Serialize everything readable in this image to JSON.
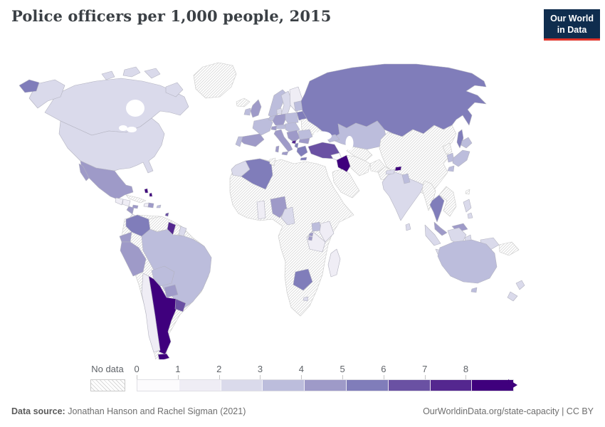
{
  "header": {
    "title": "Police officers per 1,000 people, 2015"
  },
  "logo": {
    "line1": "Our World",
    "line2": "in Data",
    "bg_color": "#0f2d4e",
    "accent_color": "#e03329",
    "text_color": "#ffffff"
  },
  "legend": {
    "no_data_label": "No data",
    "ticks": [
      "0",
      "1",
      "2",
      "3",
      "4",
      "5",
      "6",
      "7",
      "8"
    ],
    "bins": [
      {
        "range": "0-1",
        "color": "#fcfbfd"
      },
      {
        "range": "1-2",
        "color": "#efedf5"
      },
      {
        "range": "2-3",
        "color": "#dadaeb"
      },
      {
        "range": "3-4",
        "color": "#bcbddc"
      },
      {
        "range": "4-5",
        "color": "#9e9ac8"
      },
      {
        "range": "5-6",
        "color": "#807dba"
      },
      {
        "range": "6-7",
        "color": "#6a51a3"
      },
      {
        "range": "7-8",
        "color": "#54278f"
      },
      {
        "range": "8+",
        "color": "#3f007d"
      }
    ]
  },
  "footer": {
    "source_label": "Data source:",
    "source_text": " Jonathan Hanson and Rachel Sigman (2021)",
    "attribution": "OurWorldinData.org/state-capacity | CC BY"
  },
  "chart_data": {
    "type": "choropleth_map",
    "title": "Police officers per 1,000 people, 2015",
    "unit": "police officers per 1,000 people",
    "year": 2015,
    "legend": {
      "bin_edges": [
        0,
        1,
        2,
        3,
        4,
        5,
        6,
        7,
        8
      ],
      "open_ended_top": true,
      "no_data_label": "No data",
      "legend_position": "bottom"
    },
    "bin_colors": {
      "0-1": "#fcfbfd",
      "1-2": "#efedf5",
      "2-3": "#dadaeb",
      "3-4": "#bcbddc",
      "4-5": "#9e9ac8",
      "5-6": "#807dba",
      "6-7": "#6a51a3",
      "7-8": "#54278f",
      "8+": "#3f007d"
    },
    "country_bins": {
      "Argentina": "8+",
      "Iraq": "8+",
      "Bhutan": "8+",
      "Bahamas": "8+",
      "Montenegro": "7-8",
      "Guyana": "7-8",
      "Turkey": "6-7",
      "Uruguay": "6-7",
      "Trinidad and Tobago": "6-7",
      "Russia": "5-6",
      "Algeria": "5-6",
      "Botswana": "5-6",
      "Thailand": "5-6",
      "Greece": "5-6",
      "Belarus": "5-6",
      "Colombia": "5-6",
      "Albania": "5-6",
      "Mexico": "4-5",
      "Nigeria": "4-5",
      "Spain": "4-5",
      "Italy": "4-5",
      "Germany": "4-5",
      "United Kingdom": "4-5",
      "Peru": "4-5",
      "Ecuador": "4-5",
      "Panama": "4-5",
      "Nicaragua": "4-5",
      "Paraguay": "4-5",
      "Malaysia": "4-5",
      "Jamaica": "4-5",
      "Dominican Republic": "4-5",
      "Bulgaria": "4-5",
      "Serbia": "4-5",
      "Switzerland": "4-5",
      "Rwanda": "4-5",
      "Burundi": "4-5",
      "Brazil": "3-4",
      "Bolivia": "3-4",
      "Australia": "3-4",
      "Kazakhstan": "3-4",
      "France": "3-4",
      "Norway": "3-4",
      "Poland": "3-4",
      "Romania": "3-4",
      "Japan": "3-4",
      "South Korea": "3-4",
      "Uganda": "3-4",
      "Portugal": "3-4",
      "Ireland": "3-4",
      "Netherlands": "3-4",
      "Estonia": "3-4",
      "Latvia": "3-4",
      "Lithuania": "3-4",
      "Bangladesh": "3-4",
      "Puerto Rico": "3-4",
      "Georgia": "3-4",
      "Kyrgyzstan": "3-4",
      "Hungary": "3-4",
      "Austria": "3-4",
      "Canada": "2-3",
      "United States": "2-3",
      "India": "2-3",
      "Sweden": "2-3",
      "Morocco": "2-3",
      "Cameroon": "2-3",
      "Philippines": "2-3",
      "Indonesia": "2-3",
      "New Zealand": "2-3",
      "Denmark": "2-3",
      "French Guiana": "2-3",
      "Sri Lanka": "2-3",
      "Nepal": "2-3",
      "Lesotho": "2-3",
      "Madagascar": "1-2",
      "Kenya": "1-2",
      "Tanzania": "1-2",
      "Finland": "1-2",
      "Ghana": "1-2",
      "Chile": "1-2",
      "Guatemala": "1-2",
      "Honduras": "1-2",
      "Costa Rica": "1-2",
      "Haiti": "1-2",
      "Syria": "0-1"
    },
    "no_data_countries": [
      "Greenland",
      "Iceland",
      "Cuba",
      "Venezuela",
      "Suriname",
      "Ukraine",
      "Uzbekistan",
      "Turkmenistan",
      "Iran",
      "Saudi Arabia",
      "Afghanistan",
      "Pakistan",
      "China",
      "Mongolia",
      "Myanmar",
      "Vietnam",
      "Laos",
      "Cambodia",
      "North Korea",
      "Taiwan",
      "Papua New Guinea",
      "Libya",
      "Egypt",
      "Sudan",
      "Ethiopia",
      "Somalia",
      "Democratic Republic of Congo",
      "Angola",
      "Zambia",
      "Zimbabwe",
      "Mozambique",
      "Namibia",
      "South Africa",
      "Mali",
      "Niger",
      "Chad",
      "Senegal",
      "Mauritania",
      "Western Sahara"
    ]
  }
}
